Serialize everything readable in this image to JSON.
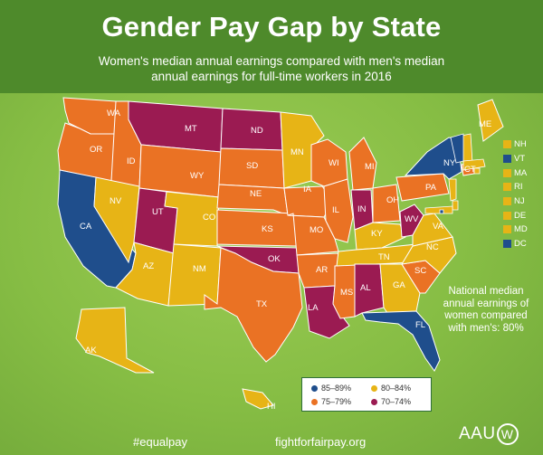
{
  "header": {
    "title": "Gender Pay Gap by State",
    "subtitle_line1": "Women's median annual earnings compared with men's median",
    "subtitle_line2": "annual earnings for full-time workers in 2016"
  },
  "colors": {
    "c8589": "#1f4e8c",
    "c8084": "#e7b416",
    "c7579": "#ea7224",
    "c7074": "#9b1b52"
  },
  "states": [
    {
      "abbr": "WA",
      "bin": "c7579"
    },
    {
      "abbr": "OR",
      "bin": "c7579"
    },
    {
      "abbr": "CA",
      "bin": "c8589"
    },
    {
      "abbr": "ID",
      "bin": "c7579"
    },
    {
      "abbr": "NV",
      "bin": "c8084"
    },
    {
      "abbr": "MT",
      "bin": "c7074"
    },
    {
      "abbr": "WY",
      "bin": "c7579"
    },
    {
      "abbr": "UT",
      "bin": "c7074"
    },
    {
      "abbr": "AZ",
      "bin": "c8084"
    },
    {
      "abbr": "CO",
      "bin": "c8084"
    },
    {
      "abbr": "NM",
      "bin": "c8084"
    },
    {
      "abbr": "ND",
      "bin": "c7074"
    },
    {
      "abbr": "SD",
      "bin": "c7579"
    },
    {
      "abbr": "NE",
      "bin": "c7579"
    },
    {
      "abbr": "KS",
      "bin": "c7579"
    },
    {
      "abbr": "OK",
      "bin": "c7074"
    },
    {
      "abbr": "TX",
      "bin": "c7579"
    },
    {
      "abbr": "MN",
      "bin": "c8084"
    },
    {
      "abbr": "IA",
      "bin": "c7579"
    },
    {
      "abbr": "MO",
      "bin": "c7579"
    },
    {
      "abbr": "AR",
      "bin": "c7579"
    },
    {
      "abbr": "LA",
      "bin": "c7074"
    },
    {
      "abbr": "WI",
      "bin": "c7579"
    },
    {
      "abbr": "IL",
      "bin": "c7579"
    },
    {
      "abbr": "MS",
      "bin": "c7579"
    },
    {
      "abbr": "MI",
      "bin": "c7579"
    },
    {
      "abbr": "IN",
      "bin": "c7074"
    },
    {
      "abbr": "KY",
      "bin": "c8084"
    },
    {
      "abbr": "TN",
      "bin": "c8084"
    },
    {
      "abbr": "AL",
      "bin": "c7074"
    },
    {
      "abbr": "OH",
      "bin": "c7579"
    },
    {
      "abbr": "WV",
      "bin": "c7074"
    },
    {
      "abbr": "GA",
      "bin": "c8084"
    },
    {
      "abbr": "FL",
      "bin": "c8589"
    },
    {
      "abbr": "SC",
      "bin": "c7579"
    },
    {
      "abbr": "NC",
      "bin": "c8084"
    },
    {
      "abbr": "VA",
      "bin": "c8084"
    },
    {
      "abbr": "PA",
      "bin": "c7579"
    },
    {
      "abbr": "NY",
      "bin": "c8589"
    },
    {
      "abbr": "ME",
      "bin": "c8084"
    },
    {
      "abbr": "CT",
      "bin": "c7579"
    },
    {
      "abbr": "AK",
      "bin": "c8084"
    },
    {
      "abbr": "HI",
      "bin": "c8084"
    }
  ],
  "small_states": [
    {
      "abbr": "NH",
      "bin": "c8084"
    },
    {
      "abbr": "VT",
      "bin": "c8589"
    },
    {
      "abbr": "MA",
      "bin": "c8084"
    },
    {
      "abbr": "RI",
      "bin": "c8084"
    },
    {
      "abbr": "NJ",
      "bin": "c8084"
    },
    {
      "abbr": "DE",
      "bin": "c8084"
    },
    {
      "abbr": "MD",
      "bin": "c8084"
    },
    {
      "abbr": "DC",
      "bin": "c8589"
    }
  ],
  "legend": [
    {
      "label": "85–89%",
      "bin": "c8589"
    },
    {
      "label": "80–84%",
      "bin": "c8084"
    },
    {
      "label": "75–79%",
      "bin": "c7579"
    },
    {
      "label": "70–74%",
      "bin": "c7074"
    }
  ],
  "national_note": [
    "National median",
    "annual earnings of",
    "women compared",
    "with men's: 80%"
  ],
  "footer": {
    "hashtag": "#equalpay",
    "site": "fightforfairpay.org",
    "logo_text": "AAU",
    "logo_mark": "W"
  }
}
